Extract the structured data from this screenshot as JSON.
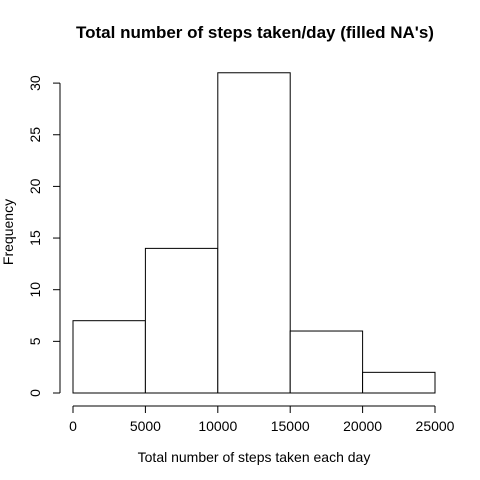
{
  "chart_data": {
    "type": "bar",
    "title": "Total number of steps taken/day (filled NA's)",
    "xlabel": "Total number of steps taken each day",
    "ylabel": "Frequency",
    "bins": [
      {
        "from": 0,
        "to": 5000,
        "count": 7
      },
      {
        "from": 5000,
        "to": 10000,
        "count": 14
      },
      {
        "from": 10000,
        "to": 15000,
        "count": 31
      },
      {
        "from": 15000,
        "to": 20000,
        "count": 6
      },
      {
        "from": 20000,
        "to": 25000,
        "count": 2
      }
    ],
    "xlim": [
      0,
      25000
    ],
    "ylim": [
      0,
      31
    ],
    "x_ticks": [
      0,
      5000,
      10000,
      15000,
      20000,
      25000
    ],
    "y_ticks": [
      0,
      5,
      10,
      15,
      20,
      25,
      30
    ],
    "grid": false,
    "colors": {
      "bar_fill": "#ffffff",
      "bar_stroke": "#000000"
    }
  }
}
